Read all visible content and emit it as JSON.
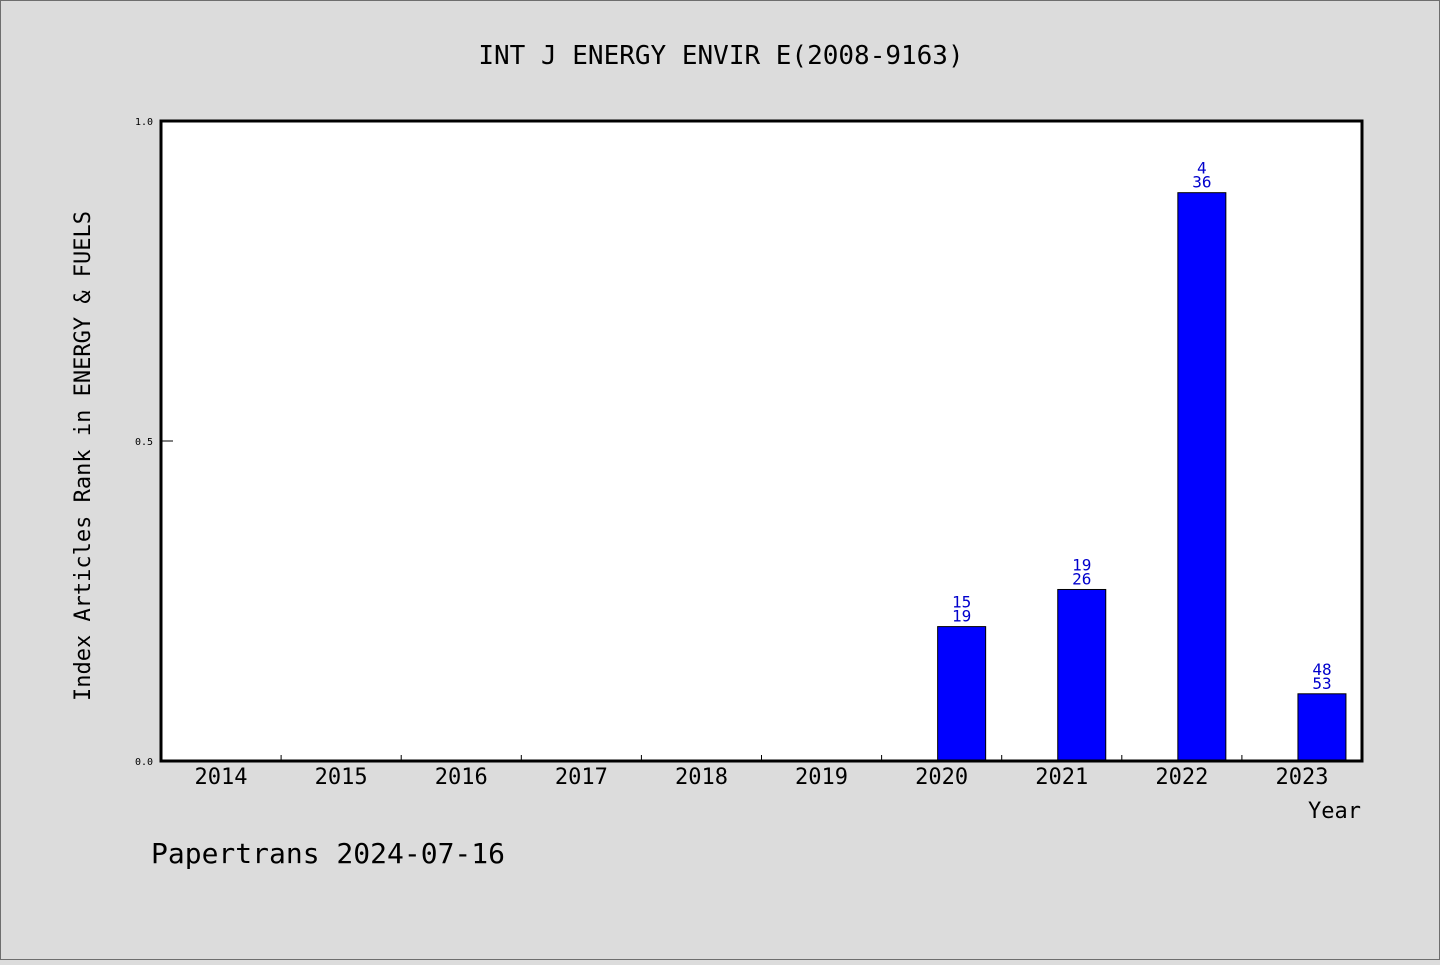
{
  "chart_data": {
    "type": "bar",
    "title": "INT J ENERGY ENVIR E(2008-9163)",
    "xlabel": "Year",
    "ylabel": "Index Articles Rank in ENERGY & FUELS",
    "categories": [
      "2014",
      "2015",
      "2016",
      "2017",
      "2018",
      "2019",
      "2020",
      "2021",
      "2022",
      "2023"
    ],
    "values": [
      null,
      null,
      null,
      null,
      null,
      null,
      0.21,
      0.268,
      0.888,
      0.105
    ],
    "bar_labels": [
      null,
      null,
      null,
      null,
      null,
      null,
      {
        "top": "15",
        "bottom": "19"
      },
      {
        "top": "19",
        "bottom": "26"
      },
      {
        "top": "4",
        "bottom": "36"
      },
      {
        "top": "48",
        "bottom": "53"
      }
    ],
    "ylim": [
      0,
      1
    ],
    "yticks": [
      "0.0",
      "0.5",
      "1.0"
    ],
    "bar_color": "#0000ff",
    "label_color": "#0000cc",
    "grid": false
  },
  "footer": {
    "source": "Papertrans 2024-07-16"
  }
}
